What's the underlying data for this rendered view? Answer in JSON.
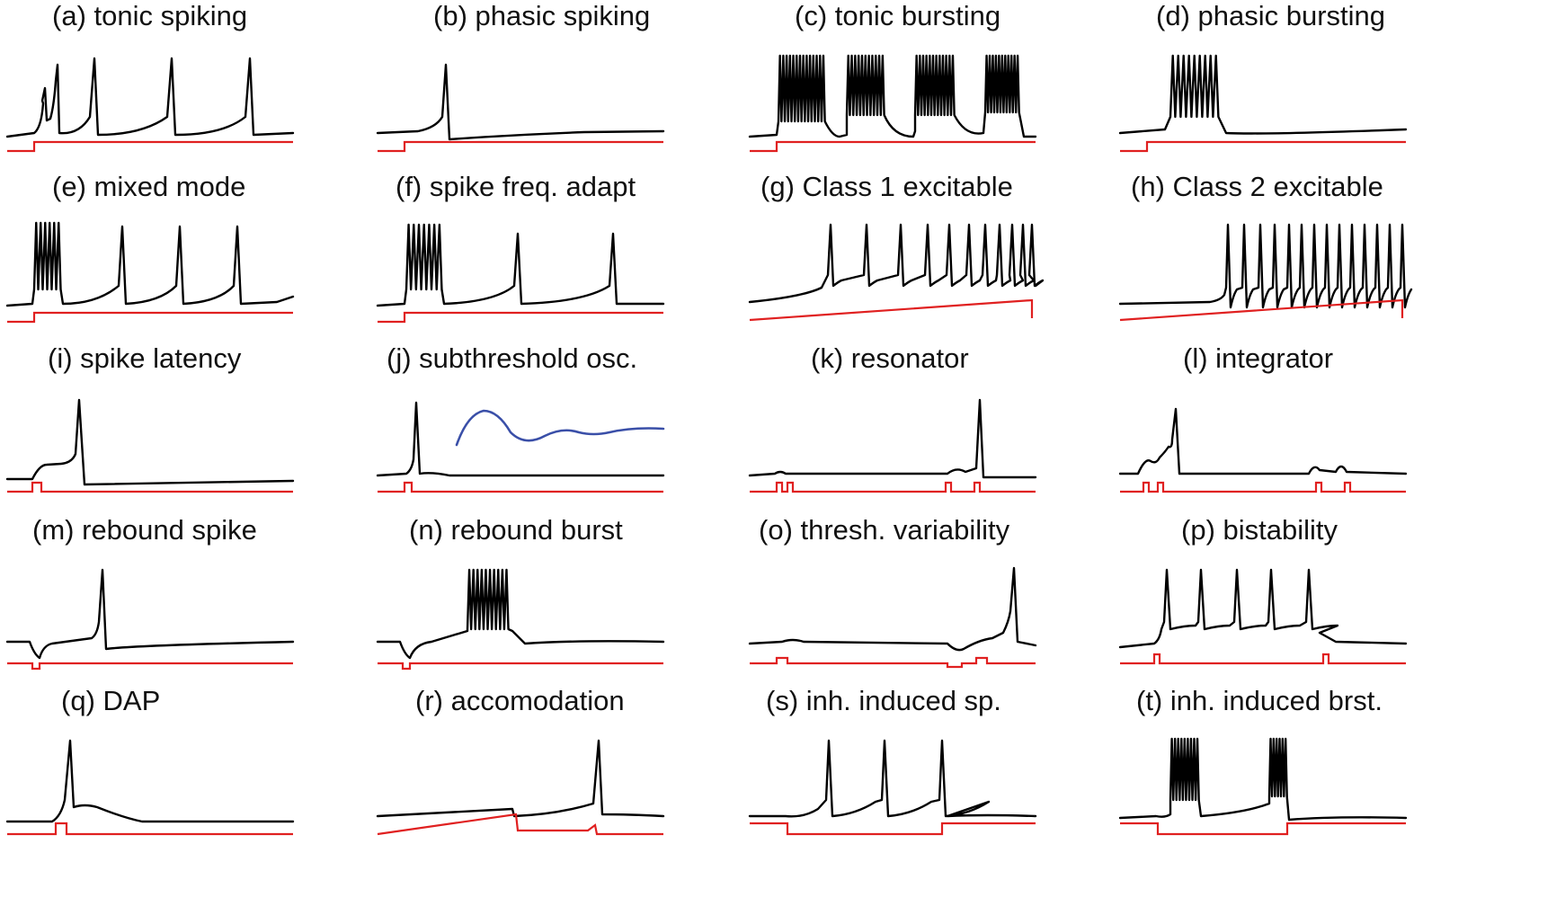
{
  "colors": {
    "voltage_trace": "#000000",
    "input_current": "#e02020",
    "inset_trace": "#3a4fa8",
    "background": "#ffffff"
  },
  "panels": [
    {
      "id": "a",
      "title": "(a) tonic spiking"
    },
    {
      "id": "b",
      "title": "(b) phasic spiking"
    },
    {
      "id": "c",
      "title": "(c) tonic bursting"
    },
    {
      "id": "d",
      "title": "(d) phasic bursting"
    },
    {
      "id": "e",
      "title": "(e) mixed mode"
    },
    {
      "id": "f",
      "title": "(f) spike freq. adapt"
    },
    {
      "id": "g",
      "title": "(g) Class 1 excitable"
    },
    {
      "id": "h",
      "title": "(h) Class 2 excitable"
    },
    {
      "id": "i",
      "title": "(i) spike latency"
    },
    {
      "id": "j",
      "title": "(j) subthreshold osc."
    },
    {
      "id": "k",
      "title": "(k) resonator"
    },
    {
      "id": "l",
      "title": "(l) integrator"
    },
    {
      "id": "m",
      "title": "(m) rebound spike"
    },
    {
      "id": "n",
      "title": "(n) rebound burst"
    },
    {
      "id": "o",
      "title": "(o) thresh. variability"
    },
    {
      "id": "p",
      "title": "(p) bistability"
    },
    {
      "id": "q",
      "title": "(q) DAP"
    },
    {
      "id": "r",
      "title": "(r) accomodation"
    },
    {
      "id": "s",
      "title": "(s) inh. induced sp."
    },
    {
      "id": "t",
      "title": "(t) inh. induced brst."
    }
  ]
}
